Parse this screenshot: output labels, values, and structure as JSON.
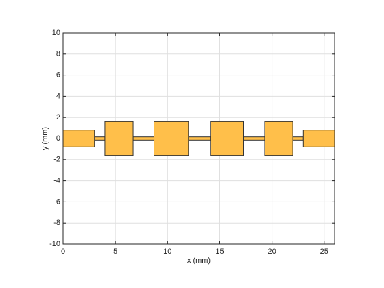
{
  "chart_data": {
    "type": "layout",
    "xlabel": "x (mm)",
    "ylabel": "y (mm)",
    "xlim": [
      0,
      26
    ],
    "ylim": [
      -10,
      10
    ],
    "xticks": [
      0,
      5,
      10,
      15,
      20,
      25
    ],
    "yticks": [
      -10,
      -8,
      -6,
      -4,
      -2,
      0,
      2,
      4,
      6,
      8,
      10
    ],
    "grid": true,
    "color": "#ffbf4a",
    "edgecolor": "#333333",
    "shapes": [
      {
        "x": [
          3,
          4
        ],
        "y": [
          -0.15,
          0.15
        ]
      },
      {
        "x": [
          6.7,
          8.7
        ],
        "y": [
          -0.15,
          0.15
        ]
      },
      {
        "x": [
          12,
          14.1
        ],
        "y": [
          -0.15,
          0.15
        ]
      },
      {
        "x": [
          17.3,
          19.3
        ],
        "y": [
          -0.15,
          0.15
        ]
      },
      {
        "x": [
          22,
          23
        ],
        "y": [
          -0.15,
          0.15
        ]
      },
      {
        "x": [
          0,
          3
        ],
        "y": [
          -0.8,
          0.8
        ]
      },
      {
        "x": [
          4,
          6.7
        ],
        "y": [
          -1.6,
          1.6
        ]
      },
      {
        "x": [
          8.7,
          12
        ],
        "y": [
          -1.6,
          1.6
        ]
      },
      {
        "x": [
          14.1,
          17.3
        ],
        "y": [
          -1.6,
          1.6
        ]
      },
      {
        "x": [
          19.3,
          22
        ],
        "y": [
          -1.6,
          1.6
        ]
      },
      {
        "x": [
          23,
          26
        ],
        "y": [
          -0.8,
          0.8
        ]
      }
    ]
  }
}
